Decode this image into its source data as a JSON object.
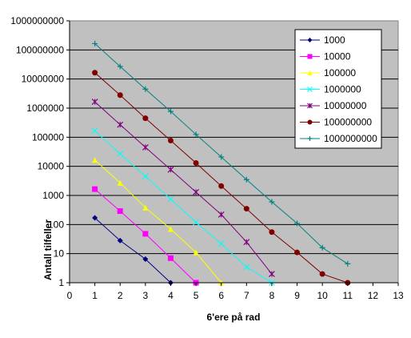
{
  "chart_data": {
    "type": "line",
    "title": "",
    "xlabel": "6'ere på rad",
    "ylabel": "Antall tilfeller",
    "x_scale": "linear",
    "y_scale": "log",
    "xlim": [
      0,
      13
    ],
    "ylim": [
      1,
      1000000000
    ],
    "x_ticks": [
      "0",
      "1",
      "2",
      "3",
      "4",
      "5",
      "6",
      "7",
      "8",
      "9",
      "10",
      "11",
      "12",
      "13"
    ],
    "y_ticks": [
      "1",
      "10",
      "100",
      "1000",
      "10000",
      "100000",
      "1000000",
      "10000000",
      "100000000",
      "1000000000"
    ],
    "grid": "horizontal",
    "legend_position": "top-right",
    "colors": {
      "plot_background": "#c0c0c0",
      "gridlines": "#000000",
      "page_background": "#ffffff"
    },
    "series": [
      {
        "name": "1000",
        "color": "#000080",
        "marker": "diamond",
        "x": [
          1,
          2,
          3,
          4
        ],
        "y": [
          170,
          28,
          6.5,
          1
        ]
      },
      {
        "name": "10000",
        "color": "#ff00ff",
        "marker": "square",
        "x": [
          1,
          2,
          3,
          4,
          5
        ],
        "y": [
          1650,
          290,
          48,
          7,
          1
        ]
      },
      {
        "name": "100000",
        "color": "#ffff00",
        "marker": "triangle",
        "x": [
          1,
          2,
          3,
          4,
          5,
          6
        ],
        "y": [
          16500,
          2700,
          380,
          70,
          11,
          1
        ]
      },
      {
        "name": "1000000",
        "color": "#00ffff",
        "marker": "x",
        "x": [
          1,
          2,
          3,
          4,
          5,
          6,
          7,
          8
        ],
        "y": [
          165000,
          27000,
          4500,
          750,
          120,
          22,
          3.5,
          1
        ]
      },
      {
        "name": "10000000",
        "color": "#800080",
        "marker": "star",
        "x": [
          1,
          2,
          3,
          4,
          5,
          6,
          7,
          8
        ],
        "y": [
          1650000,
          270000,
          45000,
          7700,
          1300,
          220,
          25,
          2
        ]
      },
      {
        "name": "100000000",
        "color": "#800000",
        "marker": "circle",
        "x": [
          1,
          2,
          3,
          4,
          5,
          6,
          7,
          8,
          9,
          10,
          11
        ],
        "y": [
          16500000,
          2800000,
          450000,
          77000,
          13000,
          2100,
          350,
          55,
          11,
          2,
          1
        ]
      },
      {
        "name": "1000000000",
        "color": "#008080",
        "marker": "plus",
        "x": [
          1,
          2,
          3,
          4,
          5,
          6,
          7,
          8,
          9,
          10,
          11
        ],
        "y": [
          165000000,
          27000000,
          4500000,
          770000,
          125000,
          21000,
          3500,
          600,
          110,
          16,
          4.5
        ]
      }
    ]
  }
}
